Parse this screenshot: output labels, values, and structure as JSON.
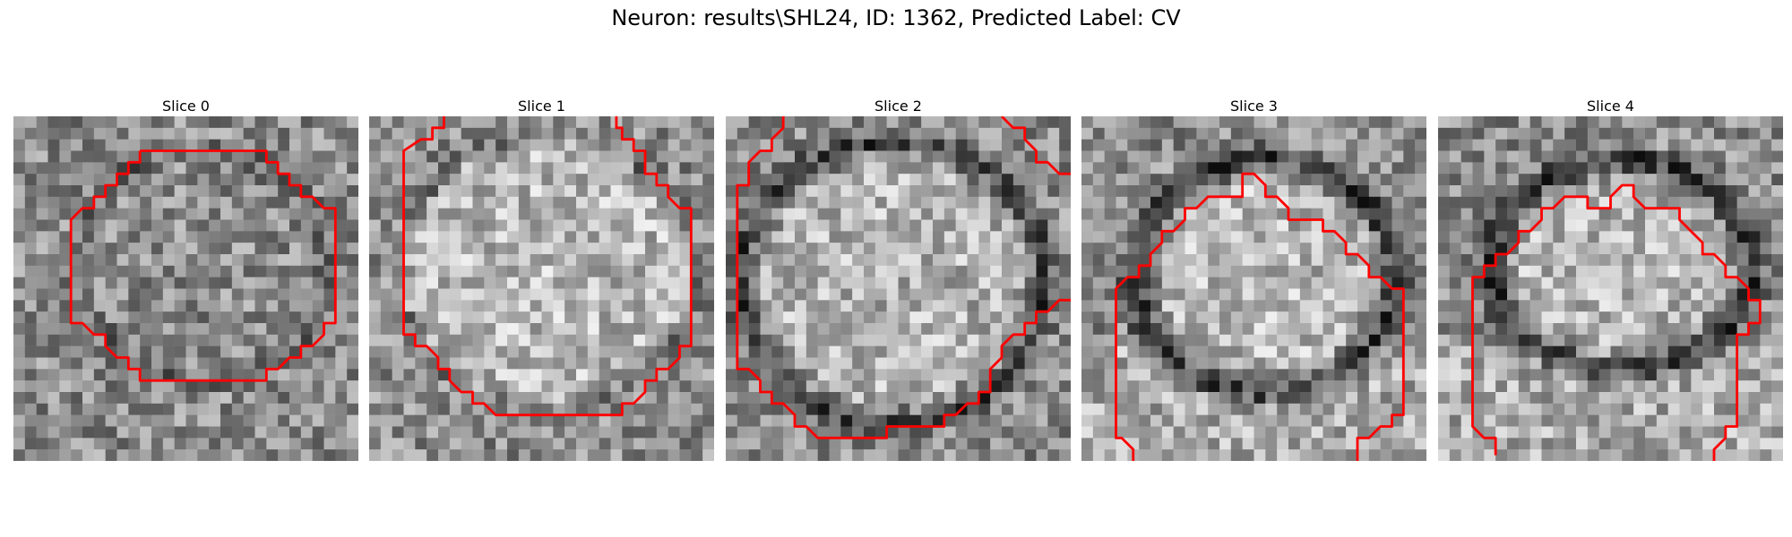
{
  "figure": {
    "title": "Neuron: results\\SHL24, ID: 1362, Predicted Label: CV",
    "contour_color": "#ff0000",
    "colormap": "gray",
    "grid": [
      30,
      30
    ]
  },
  "slices": [
    {
      "title": "Slice 0"
    },
    {
      "title": "Slice 1"
    },
    {
      "title": "Slice 2"
    },
    {
      "title": "Slice 3"
    },
    {
      "title": "Slice 4"
    }
  ]
}
